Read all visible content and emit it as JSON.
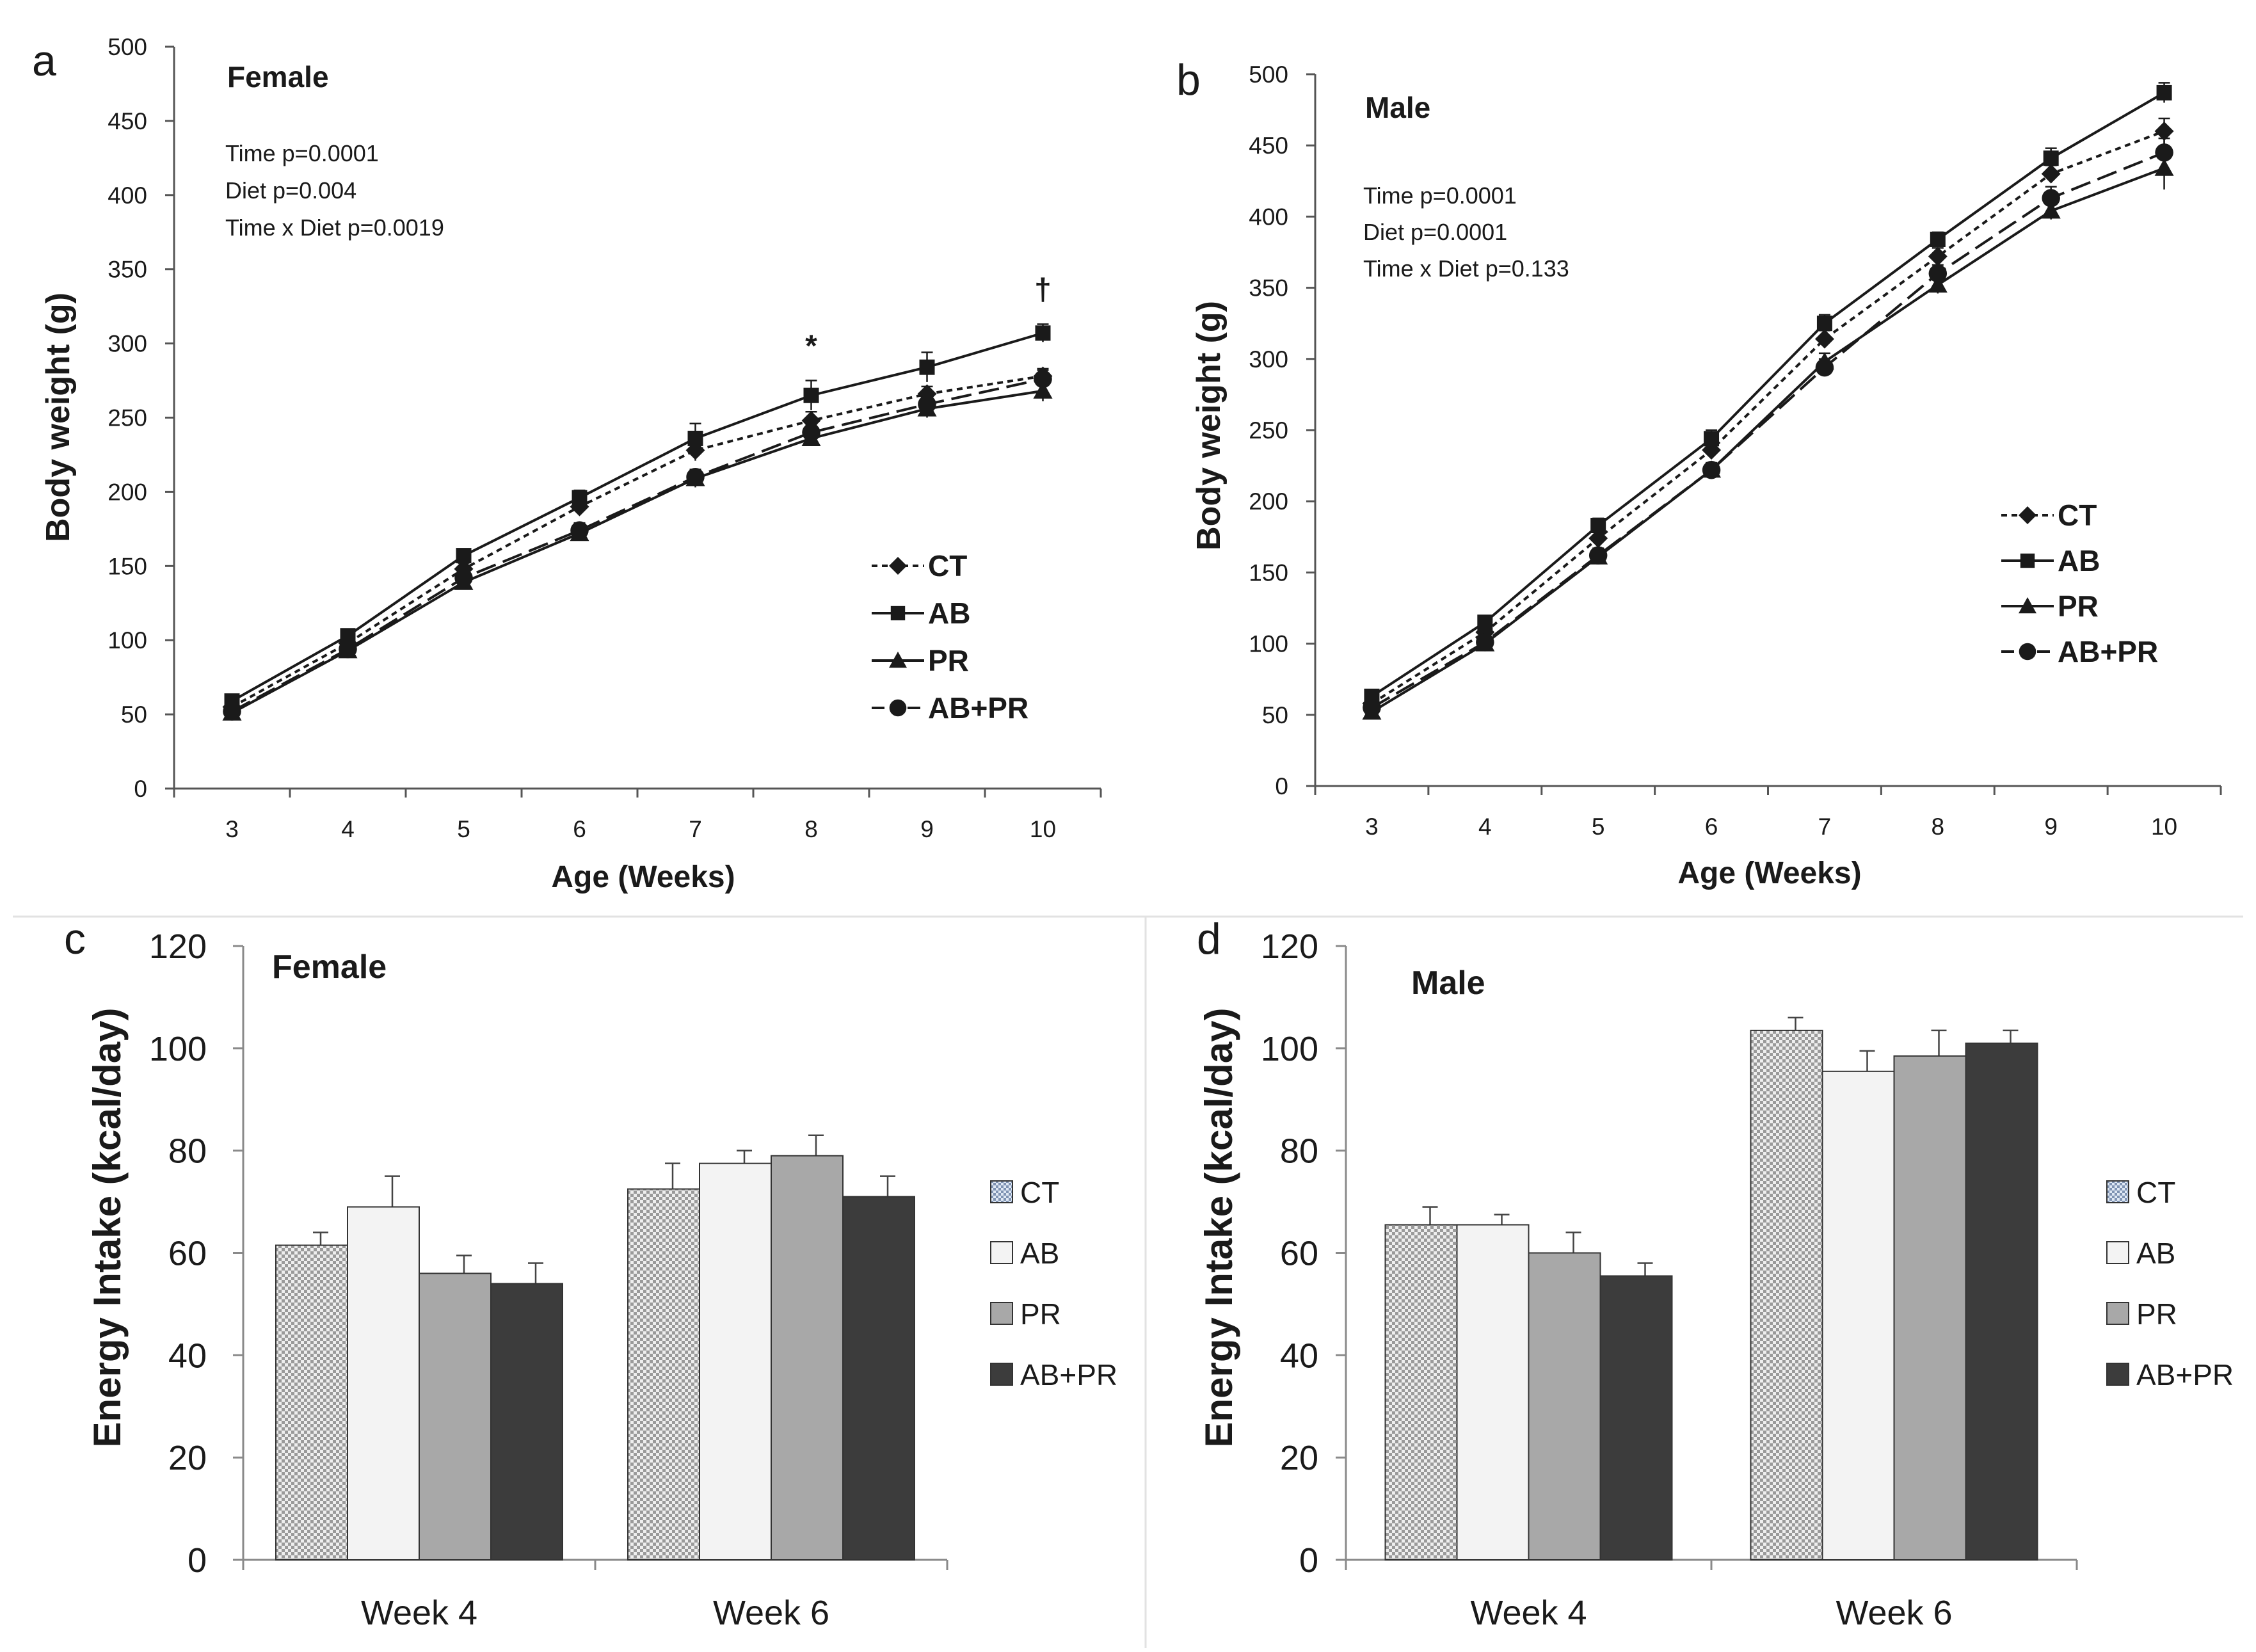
{
  "colors": {
    "ink": "#1a1a1a",
    "ct_fill": "#d4d4d4",
    "ab_fill": "#f3f3f3",
    "pr_fill": "#a8a8a8",
    "abpr_fill": "#3c3c3c"
  },
  "legend": [
    "CT",
    "AB",
    "PR",
    "AB+PR"
  ],
  "chart_data": [
    {
      "panel": "a",
      "type": "line",
      "title": "Female",
      "xlabel": "Age (Weeks)",
      "ylabel": "Body weight (g)",
      "ylim": [
        0,
        500
      ],
      "yticks": [
        0,
        50,
        100,
        150,
        200,
        250,
        300,
        350,
        400,
        450,
        500
      ],
      "x": [
        3,
        4,
        5,
        6,
        7,
        8,
        9,
        10
      ],
      "stats": [
        "Time p=0.0001",
        "Diet p=0.004",
        "Time x Diet p=0.0019"
      ],
      "annotations": [
        {
          "x": 8,
          "text": "*"
        },
        {
          "x": 10,
          "text": "†"
        }
      ],
      "series": [
        {
          "name": "CT",
          "marker": "diamond",
          "dash": "short",
          "values": [
            55,
            98,
            148,
            190,
            228,
            248,
            266,
            278
          ],
          "err": [
            3,
            3,
            4,
            5,
            7,
            6,
            5,
            5
          ]
        },
        {
          "name": "AB",
          "marker": "square",
          "dash": "solid",
          "values": [
            59,
            103,
            157,
            196,
            236,
            265,
            284,
            307
          ],
          "err": [
            3,
            3,
            4,
            5,
            10,
            10,
            10,
            6
          ]
        },
        {
          "name": "PR",
          "marker": "triangle",
          "dash": "solid",
          "values": [
            51,
            93,
            139,
            172,
            209,
            236,
            256,
            268
          ],
          "err": [
            3,
            3,
            4,
            5,
            6,
            5,
            6,
            7
          ]
        },
        {
          "name": "AB+PR",
          "marker": "circle",
          "dash": "long",
          "values": [
            52,
            94,
            142,
            174,
            210,
            240,
            259,
            276
          ],
          "err": [
            3,
            3,
            4,
            5,
            5,
            5,
            5,
            6
          ]
        }
      ]
    },
    {
      "panel": "b",
      "type": "line",
      "title": "Male",
      "xlabel": "Age (Weeks)",
      "ylabel": "Body weight (g)",
      "ylim": [
        0,
        500
      ],
      "yticks": [
        0,
        50,
        100,
        150,
        200,
        250,
        300,
        350,
        400,
        450,
        500
      ],
      "x": [
        3,
        4,
        5,
        6,
        7,
        8,
        9,
        10
      ],
      "stats": [
        "Time p=0.0001",
        "Diet p=0.0001",
        "Time x Diet p=0.133"
      ],
      "annotations": [],
      "series": [
        {
          "name": "CT",
          "marker": "diamond",
          "dash": "short",
          "values": [
            58,
            108,
            174,
            236,
            314,
            372,
            430,
            460
          ],
          "err": [
            3,
            4,
            5,
            6,
            6,
            6,
            6,
            9
          ]
        },
        {
          "name": "AB",
          "marker": "square",
          "dash": "solid",
          "values": [
            63,
            115,
            183,
            244,
            325,
            384,
            441,
            487
          ],
          "err": [
            3,
            4,
            5,
            6,
            6,
            5,
            7,
            7
          ]
        },
        {
          "name": "PR",
          "marker": "triangle",
          "dash": "solid",
          "values": [
            52,
            100,
            161,
            222,
            298,
            352,
            404,
            434
          ],
          "err": [
            3,
            4,
            5,
            5,
            6,
            6,
            6,
            15
          ]
        },
        {
          "name": "AB+PR",
          "marker": "circle",
          "dash": "long",
          "values": [
            55,
            101,
            162,
            222,
            294,
            360,
            413,
            445
          ],
          "err": [
            3,
            4,
            5,
            5,
            6,
            6,
            8,
            10
          ]
        }
      ]
    },
    {
      "panel": "c",
      "type": "bar",
      "title": "Female",
      "xlabel": "",
      "ylabel": "Energy Intake (kcal/day)",
      "ylim": [
        0,
        120
      ],
      "yticks": [
        0,
        20,
        40,
        60,
        80,
        100,
        120
      ],
      "categories": [
        "Week 4",
        "Week 6"
      ],
      "series": [
        {
          "name": "CT",
          "values": [
            61.5,
            72.5
          ],
          "err": [
            2.5,
            5
          ]
        },
        {
          "name": "AB",
          "values": [
            69,
            77.5
          ],
          "err": [
            6,
            2.5
          ]
        },
        {
          "name": "PR",
          "values": [
            56,
            79
          ],
          "err": [
            3.5,
            4
          ]
        },
        {
          "name": "AB+PR",
          "values": [
            54,
            71
          ],
          "err": [
            4,
            4
          ]
        }
      ]
    },
    {
      "panel": "d",
      "type": "bar",
      "title": "Male",
      "xlabel": "",
      "ylabel": "Energy Intake (kcal/day)",
      "ylim": [
        0,
        120
      ],
      "yticks": [
        0,
        20,
        40,
        60,
        80,
        100,
        120
      ],
      "categories": [
        "Week 4",
        "Week 6"
      ],
      "series": [
        {
          "name": "CT",
          "values": [
            65.5,
            103.5
          ],
          "err": [
            3.5,
            2.5
          ]
        },
        {
          "name": "AB",
          "values": [
            65.5,
            95.5
          ],
          "err": [
            2,
            4
          ]
        },
        {
          "name": "PR",
          "values": [
            60,
            98.5
          ],
          "err": [
            4,
            5
          ]
        },
        {
          "name": "AB+PR",
          "values": [
            55.5,
            101
          ],
          "err": [
            2.5,
            2.5
          ]
        }
      ]
    }
  ]
}
